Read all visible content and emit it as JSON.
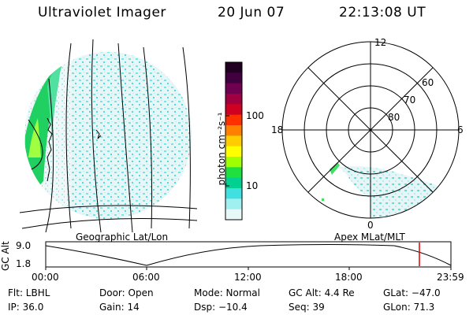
{
  "header": {
    "instrument": "Ultraviolet Imager",
    "date": "20 Jun 07",
    "time": "22:13:08 UT"
  },
  "colorbar": {
    "unit_label": "photon cm⁻²s⁻¹",
    "tick_labels": [
      "100",
      "10"
    ],
    "colors": [
      "#200020",
      "#400040",
      "#700050",
      "#a00040",
      "#d00020",
      "#ff3000",
      "#ff8000",
      "#ffcc00",
      "#ffff00",
      "#a0ff00",
      "#20e040",
      "#00d090",
      "#40e0e0",
      "#a0f0f0",
      "#e8f8f8"
    ]
  },
  "geographic_panel": {
    "label": "Geographic Lat/Lon"
  },
  "polar_panel": {
    "label": "Apex MLat/MLT",
    "hour_labels": {
      "top": "12",
      "left": "18",
      "right": "6",
      "bottom": "0"
    },
    "lat_labels": [
      "60",
      "70",
      "80"
    ]
  },
  "altitude_plot": {
    "ylabel": "GC Alt",
    "yticks": [
      "9.0",
      "1.8"
    ],
    "xticks": [
      "00:00",
      "06:00",
      "12:00",
      "18:00",
      "23:59"
    ],
    "marker_color": "#e00000"
  },
  "status": {
    "flt": "Flt: LBHL",
    "ip": "IP: 36.0",
    "door": "Door: Open",
    "gain": "Gain: 14",
    "mode": "Mode: Normal",
    "dsp": "Dsp:  −10.4",
    "gc_alt": "GC Alt: 4.4 Re",
    "seq": "Seq: 39",
    "glat": "GLat: −47.0",
    "glon": "GLon:  71.3"
  }
}
